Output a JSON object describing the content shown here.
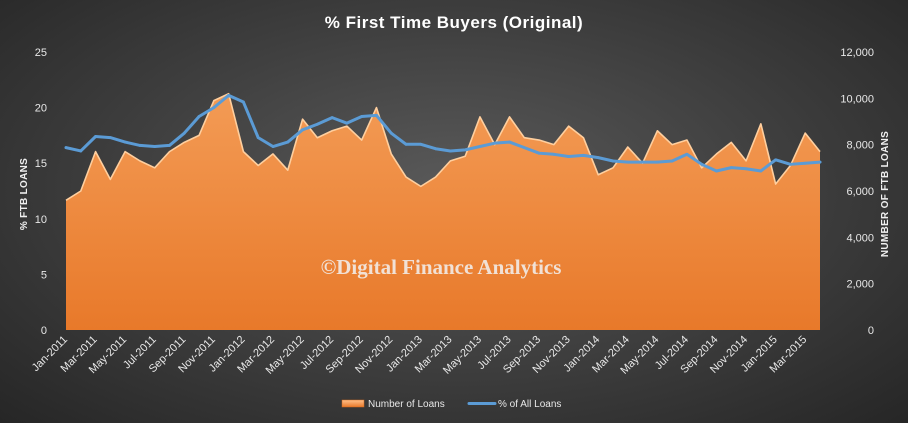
{
  "chart_data": {
    "type": "area",
    "title": "% First Time Buyers (Original)",
    "ylabel": "% FTB LOANS",
    "y2label": "NUMBER OF FTB LOANS",
    "watermark": "©Digital Finance Analytics",
    "ylim": [
      0,
      25
    ],
    "y2lim": [
      0,
      12000
    ],
    "yticks": [
      "0",
      "5",
      "10",
      "15",
      "20",
      "25"
    ],
    "y2ticks": [
      "0",
      "2,000",
      "4,000",
      "6,000",
      "8,000",
      "10,000",
      "12,000"
    ],
    "x_tick_labels": [
      "Jan-2011",
      "Mar-2011",
      "May-2011",
      "Jul-2011",
      "Sep-2011",
      "Nov-2011",
      "Jan-2012",
      "Mar-2012",
      "May-2012",
      "Jul-2012",
      "Sep-2012",
      "Nov-2012",
      "Jan-2013",
      "Mar-2013",
      "May-2013",
      "Jul-2013",
      "Sep-2013",
      "Nov-2013",
      "Jan-2014",
      "Mar-2014",
      "May-2014",
      "Jul-2014",
      "Sep-2014",
      "Nov-2014",
      "Jan-2015",
      "Mar-2015"
    ],
    "x": [
      "Jan-2011",
      "Feb-2011",
      "Mar-2011",
      "Apr-2011",
      "May-2011",
      "Jun-2011",
      "Jul-2011",
      "Aug-2011",
      "Sep-2011",
      "Oct-2011",
      "Nov-2011",
      "Dec-2011",
      "Jan-2012",
      "Feb-2012",
      "Mar-2012",
      "Apr-2012",
      "May-2012",
      "Jun-2012",
      "Jul-2012",
      "Aug-2012",
      "Sep-2012",
      "Oct-2012",
      "Nov-2012",
      "Dec-2012",
      "Jan-2013",
      "Feb-2013",
      "Mar-2013",
      "Apr-2013",
      "May-2013",
      "Jun-2013",
      "Jul-2013",
      "Aug-2013",
      "Sep-2013",
      "Oct-2013",
      "Nov-2013",
      "Dec-2013",
      "Jan-2014",
      "Feb-2014",
      "Mar-2014",
      "Apr-2014",
      "May-2014",
      "Jun-2014",
      "Jul-2014",
      "Aug-2014",
      "Sep-2014",
      "Oct-2014",
      "Nov-2014",
      "Dec-2014",
      "Jan-2015",
      "Feb-2015",
      "Mar-2015",
      "Apr-2015"
    ],
    "series": [
      {
        "name": "Number of Loans",
        "type": "area",
        "axis": "right",
        "color": "#f08a3c",
        "values": [
          5600,
          6000,
          7700,
          6500,
          7700,
          7300,
          7000,
          7700,
          8100,
          8400,
          9900,
          10200,
          7700,
          7100,
          7600,
          6900,
          9100,
          8300,
          8600,
          8800,
          8200,
          9600,
          7600,
          6600,
          6200,
          6600,
          7300,
          7500,
          9200,
          8000,
          9200,
          8300,
          8200,
          8000,
          8800,
          8300,
          6700,
          7000,
          7900,
          7200,
          8600,
          8000,
          8200,
          7000,
          7600,
          8100,
          7300,
          8900,
          6300,
          7100,
          8500,
          7700
        ]
      },
      {
        "name": "% of All Loans",
        "type": "line",
        "axis": "left",
        "color": "#5b9bd5",
        "values": [
          16.4,
          16.1,
          17.4,
          17.3,
          16.9,
          16.6,
          16.5,
          16.6,
          17.7,
          19.2,
          20.0,
          21.1,
          20.5,
          17.3,
          16.5,
          16.9,
          18.0,
          18.5,
          19.1,
          18.6,
          19.2,
          19.3,
          17.7,
          16.7,
          16.7,
          16.3,
          16.1,
          16.2,
          16.5,
          16.8,
          16.9,
          16.4,
          15.9,
          15.8,
          15.6,
          15.7,
          15.5,
          15.2,
          15.1,
          15.1,
          15.1,
          15.2,
          15.8,
          14.9,
          14.3,
          14.6,
          14.5,
          14.3,
          15.3,
          14.9,
          15.0,
          15.1
        ]
      }
    ],
    "legend": {
      "position": "bottom",
      "items": [
        "Number of Loans",
        "% of All Loans"
      ]
    },
    "grid": false
  }
}
